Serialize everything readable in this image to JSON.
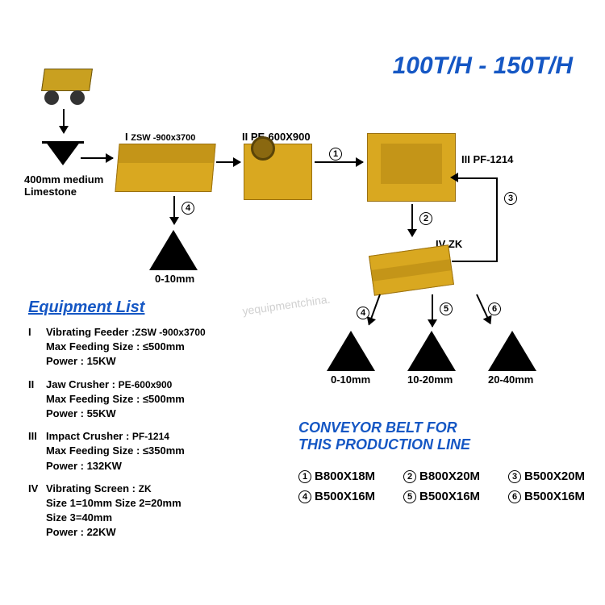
{
  "colors": {
    "title_blue": "#1557c4",
    "machine_yellow": "#d9a820",
    "black": "#000000"
  },
  "title": "100T/H - 150T/H",
  "input_material": "400mm medium\nLimestone",
  "machines": {
    "i": {
      "roman": "I",
      "model": "ZSW -900x3700"
    },
    "ii": {
      "roman": "II",
      "model": "PE-600X900"
    },
    "iii": {
      "roman": "III",
      "model": "PF-1214"
    },
    "iv": {
      "roman": "IV",
      "model": "ZK"
    }
  },
  "outputs": {
    "a": "0-10mm",
    "b": "0-10mm",
    "c": "10-20mm",
    "d": "20-40mm"
  },
  "flow_labels": {
    "1": "1",
    "2": "2",
    "3": "3",
    "4": "4",
    "5": "5",
    "6": "6"
  },
  "equipment_list": {
    "title": "Equipment List",
    "items": [
      {
        "roman": "I",
        "name": "Vibrating Feeder :",
        "model": "ZSW -900x3700",
        "specs": [
          "Max Feeding Size : ≤500mm",
          "Power : 15KW"
        ]
      },
      {
        "roman": "II",
        "name": "Jaw Crusher : ",
        "model": "PE-600x900",
        "specs": [
          "Max Feeding Size : ≤500mm",
          "Power : 55KW"
        ]
      },
      {
        "roman": "III",
        "name": "Impact Crusher : ",
        "model": "PF-1214",
        "specs": [
          "Max Feeding Size : ≤350mm",
          "Power : 132KW"
        ]
      },
      {
        "roman": "IV",
        "name": "Vibrating Screen : ",
        "model": "ZK",
        "specs": [
          "Size 1=10mm  Size 2=20mm",
          "Size 3=40mm",
          "Power : 22KW"
        ]
      }
    ]
  },
  "conveyor": {
    "title1": "CONVEYOR BELT FOR",
    "title2": "THIS PRODUCTION LINE",
    "belts": [
      {
        "n": "1",
        "v": "B800X18M"
      },
      {
        "n": "2",
        "v": "B800X20M"
      },
      {
        "n": "3",
        "v": "B500X20M"
      },
      {
        "n": "4",
        "v": "B500X16M"
      },
      {
        "n": "5",
        "v": "B500X16M"
      },
      {
        "n": "6",
        "v": "B500X16M"
      }
    ]
  },
  "watermark": "yequipmentchina."
}
